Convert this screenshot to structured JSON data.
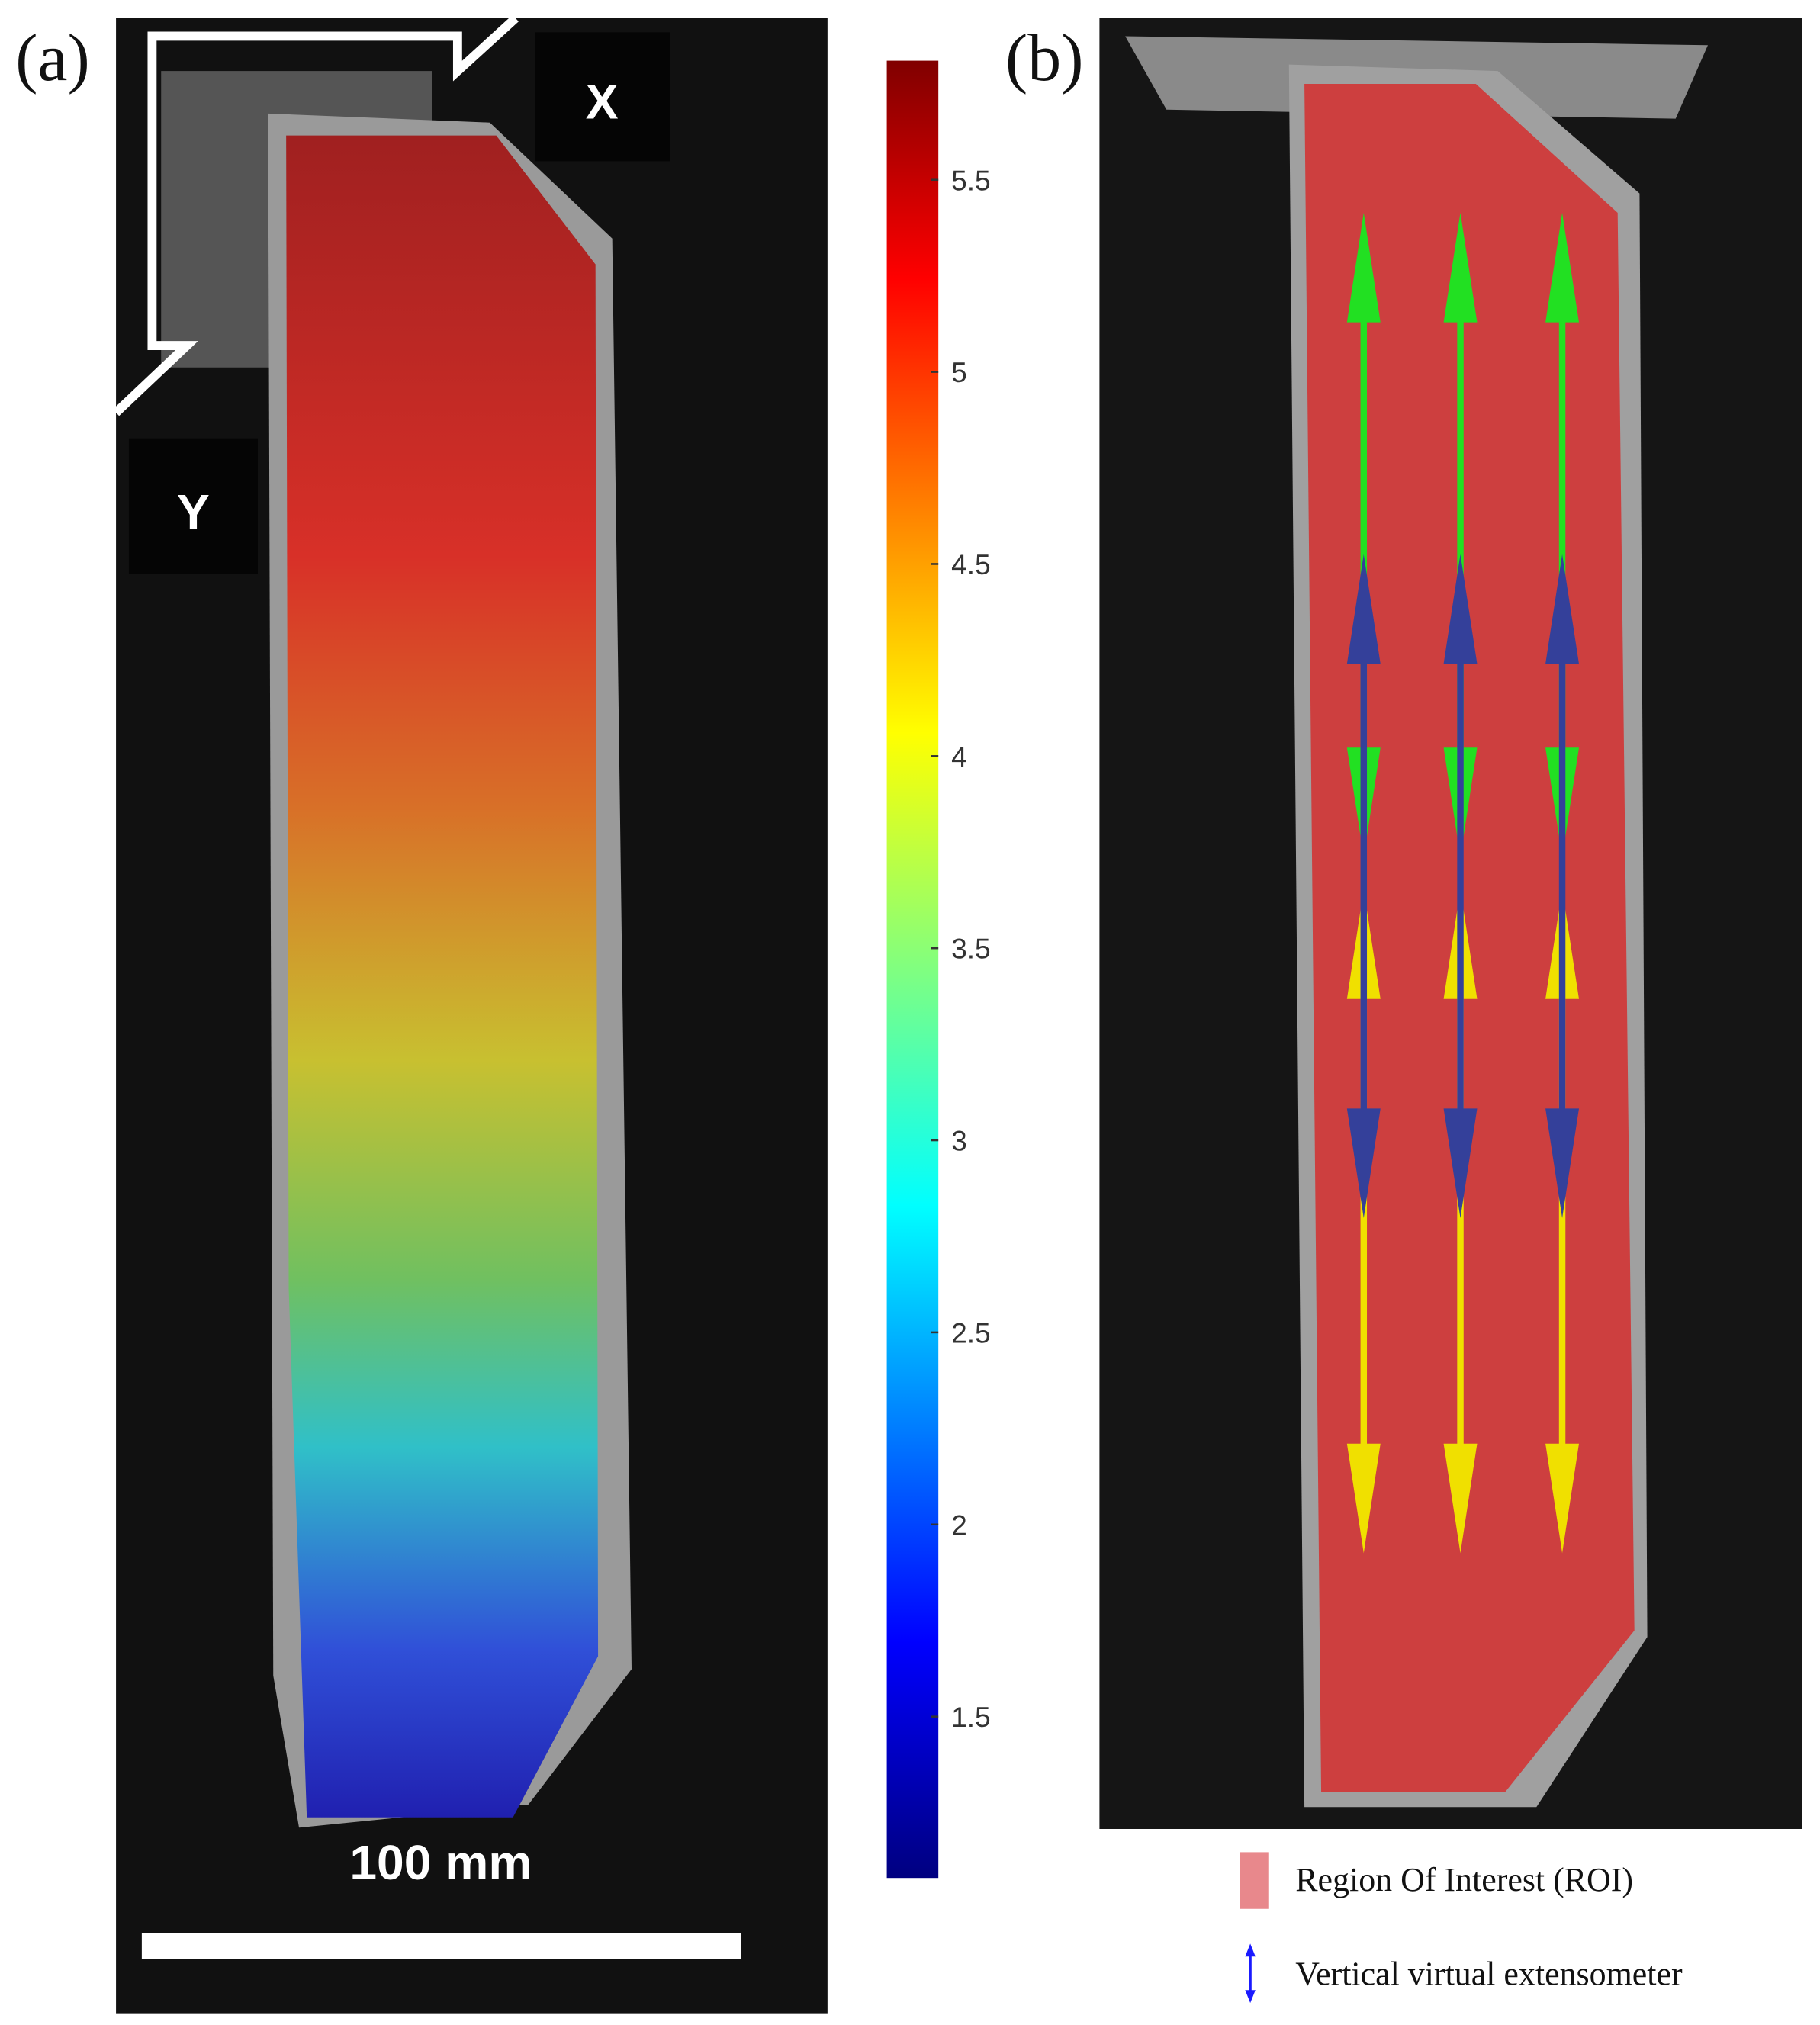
{
  "panel_a": {
    "label": "(a)",
    "axis_x": "X",
    "axis_y": "Y",
    "scale_bar": "100 mm",
    "colorbar": {
      "lim": [
        1.08,
        5.81
      ],
      "ticks": [
        1.5,
        2,
        2.5,
        3,
        3.5,
        4,
        4.5,
        5,
        5.5
      ]
    }
  },
  "panel_b": {
    "label": "(b)"
  },
  "legend": [
    {
      "label": "Region Of Interest (ROI)"
    },
    {
      "label": "Vertical virtual extensometer"
    }
  ]
}
